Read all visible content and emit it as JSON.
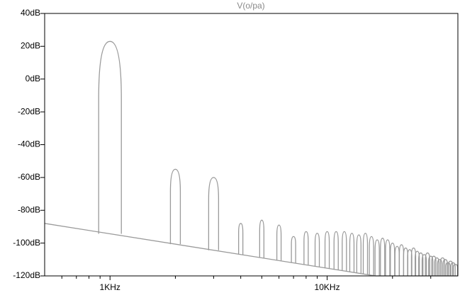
{
  "chart_data": {
    "type": "spectrum",
    "title": "V(o/pa)",
    "xscale": "log",
    "xlim": [
      500,
      40000
    ],
    "xticks": [
      {
        "value": 1000,
        "label": "1KHz"
      },
      {
        "value": 10000,
        "label": "10KHz"
      }
    ],
    "xminor": [
      600,
      700,
      800,
      900,
      2000,
      3000,
      4000,
      5000,
      6000,
      7000,
      8000,
      9000,
      20000,
      30000
    ],
    "ylim": [
      -120,
      40
    ],
    "yticks": [
      {
        "value": 40,
        "label": "40dB"
      },
      {
        "value": 20,
        "label": "20dB"
      },
      {
        "value": 0,
        "label": "0dB"
      },
      {
        "value": -20,
        "label": "-20dB"
      },
      {
        "value": -40,
        "label": "-40dB"
      },
      {
        "value": -60,
        "label": "-60dB"
      },
      {
        "value": -80,
        "label": "-80dB"
      },
      {
        "value": -100,
        "label": "-100dB"
      },
      {
        "value": -120,
        "label": "-120dB"
      }
    ],
    "color": "#9a9a9a",
    "floor": {
      "x": [
        500,
        16700,
        40000
      ],
      "values": [
        -88,
        -120,
        -120
      ]
    },
    "harmonics": {
      "x": [
        1000,
        2000,
        3000,
        4000,
        5000,
        6000,
        7000,
        8000,
        9000,
        10000,
        11000,
        12000,
        13000,
        14000,
        15000,
        16000,
        17000,
        18000,
        19000,
        20000,
        21000,
        22000,
        23000,
        24000,
        25000,
        26000,
        27000,
        28000,
        29000,
        30000,
        31000,
        32000,
        33000,
        34000,
        35000,
        36000,
        37000,
        38000,
        39000
      ],
      "values": [
        23,
        -55,
        -60,
        -88,
        -86,
        -89,
        -96,
        -93,
        -94,
        -93,
        -93,
        -93,
        -94,
        -95,
        -94,
        -96,
        -98,
        -97,
        -98,
        -100,
        -102,
        -101,
        -103,
        -104,
        -103,
        -105,
        -106,
        -107,
        -106,
        -108,
        -108,
        -109,
        -110,
        -109,
        -110,
        -112,
        -111,
        -112,
        -113
      ]
    }
  }
}
